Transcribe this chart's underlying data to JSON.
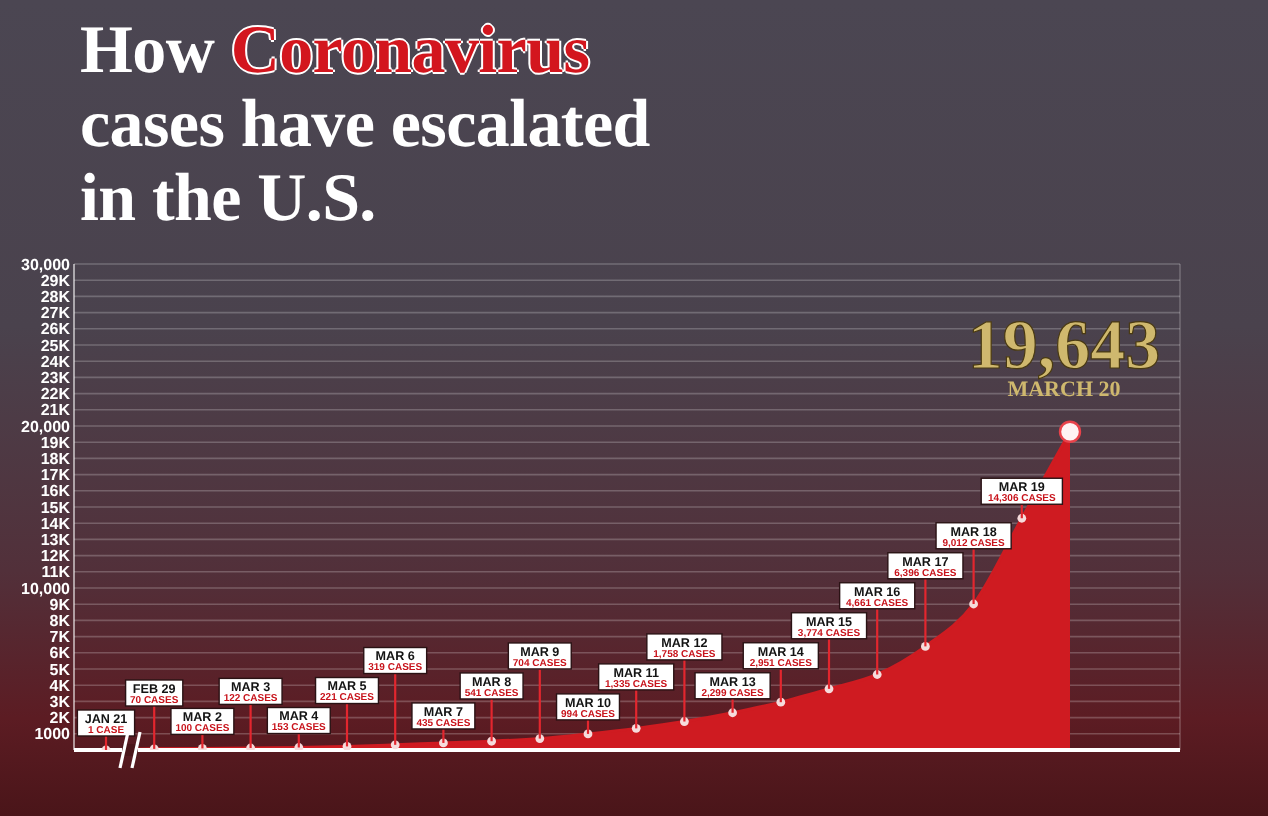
{
  "chart_data": {
    "type": "area",
    "title": "How Coronavirus cases have escalated in the U.S.",
    "categories": [
      "JAN 21",
      "FEB 29",
      "MAR 2",
      "MAR 3",
      "MAR 4",
      "MAR 5",
      "MAR 6",
      "MAR 7",
      "MAR 8",
      "MAR 9",
      "MAR 10",
      "MAR 11",
      "MAR 12",
      "MAR 13",
      "MAR 14",
      "MAR 15",
      "MAR 16",
      "MAR 17",
      "MAR 18",
      "MAR 19",
      "MARCH 20"
    ],
    "values": [
      1,
      70,
      100,
      122,
      153,
      221,
      319,
      435,
      541,
      704,
      994,
      1335,
      1758,
      2299,
      2951,
      3774,
      4661,
      6396,
      9012,
      14306,
      19643
    ],
    "value_labels": [
      "1 CASE",
      "70 CASES",
      "100 CASES",
      "122 CASES",
      "153 CASES",
      "221 CASES",
      "319 CASES",
      "435 CASES",
      "541 CASES",
      "704 CASES",
      "994 CASES",
      "1,335 CASES",
      "1,758 CASES",
      "2,299 CASES",
      "2,951 CASES",
      "3,774 CASES",
      "4,661 CASES",
      "6,396 CASES",
      "9,012 CASES",
      "14,306 CASES",
      "19,643"
    ],
    "color": "#cf1b21",
    "ylim": [
      0,
      30000
    ],
    "yticks": [
      1000,
      {
        "value": 2000,
        "label": "2K"
      },
      {
        "value": 3000,
        "label": "3K"
      },
      {
        "value": 4000,
        "label": "4K"
      },
      {
        "value": 5000,
        "label": "5K"
      },
      {
        "value": 6000,
        "label": "6K"
      },
      {
        "value": 7000,
        "label": "7K"
      },
      {
        "value": 8000,
        "label": "8K"
      },
      {
        "value": 9000,
        "label": "9K"
      },
      {
        "value": 10000,
        "label": "10,000"
      },
      {
        "value": 11000,
        "label": "11K"
      },
      {
        "value": 12000,
        "label": "12K"
      },
      {
        "value": 13000,
        "label": "13K"
      },
      {
        "value": 14000,
        "label": "14K"
      },
      {
        "value": 15000,
        "label": "15K"
      },
      {
        "value": 16000,
        "label": "16K"
      },
      {
        "value": 17000,
        "label": "17K"
      },
      {
        "value": 18000,
        "label": "18K"
      },
      {
        "value": 19000,
        "label": "19K"
      },
      {
        "value": 20000,
        "label": "20,000"
      },
      {
        "value": 21000,
        "label": "21K"
      },
      {
        "value": 22000,
        "label": "22K"
      },
      {
        "value": 23000,
        "label": "23K"
      },
      {
        "value": 24000,
        "label": "24K"
      },
      {
        "value": 25000,
        "label": "25K"
      },
      {
        "value": 26000,
        "label": "26K"
      },
      {
        "value": 27000,
        "label": "27K"
      },
      {
        "value": 28000,
        "label": "28K"
      },
      {
        "value": 29000,
        "label": "29K"
      },
      {
        "value": 30000,
        "label": "30,000"
      }
    ],
    "grid": true,
    "marker": "circle",
    "tick_labels": "y"
  }
}
